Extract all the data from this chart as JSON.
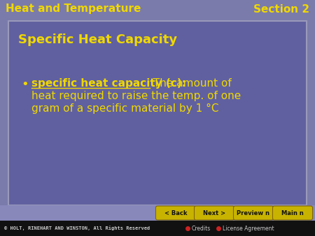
{
  "header_left": "Heat and Temperature",
  "header_right": "Section 2",
  "header_bg": "#7b7bab",
  "header_text_color": "#f0d800",
  "slide_title": "Specific Heat Capacity",
  "slide_title_color": "#f0d800",
  "slide_bg": "#6060a0",
  "slide_border_color": "#9999bb",
  "bullet_term": "specific heat capacity (c):",
  "bullet_rest_line1": " The amount of",
  "bullet_line2": "heat required to raise the temp. of one",
  "bullet_line3": "gram of a specific material by 1 °C",
  "bullet_color": "#f0d800",
  "bottom_bar_bg": "#8888bb",
  "footer_bg": "#111111",
  "footer_text": "© HOLT, RINEHART AND WINSTON, All Rights Reserved",
  "footer_text_color": "#cccccc",
  "credits_text": "Credits",
  "license_text": "License Agreement",
  "button_color": "#c8b400",
  "button_text_color": "#111111",
  "buttons": [
    "< Back",
    "Next >",
    "Preview n",
    "Main n"
  ]
}
